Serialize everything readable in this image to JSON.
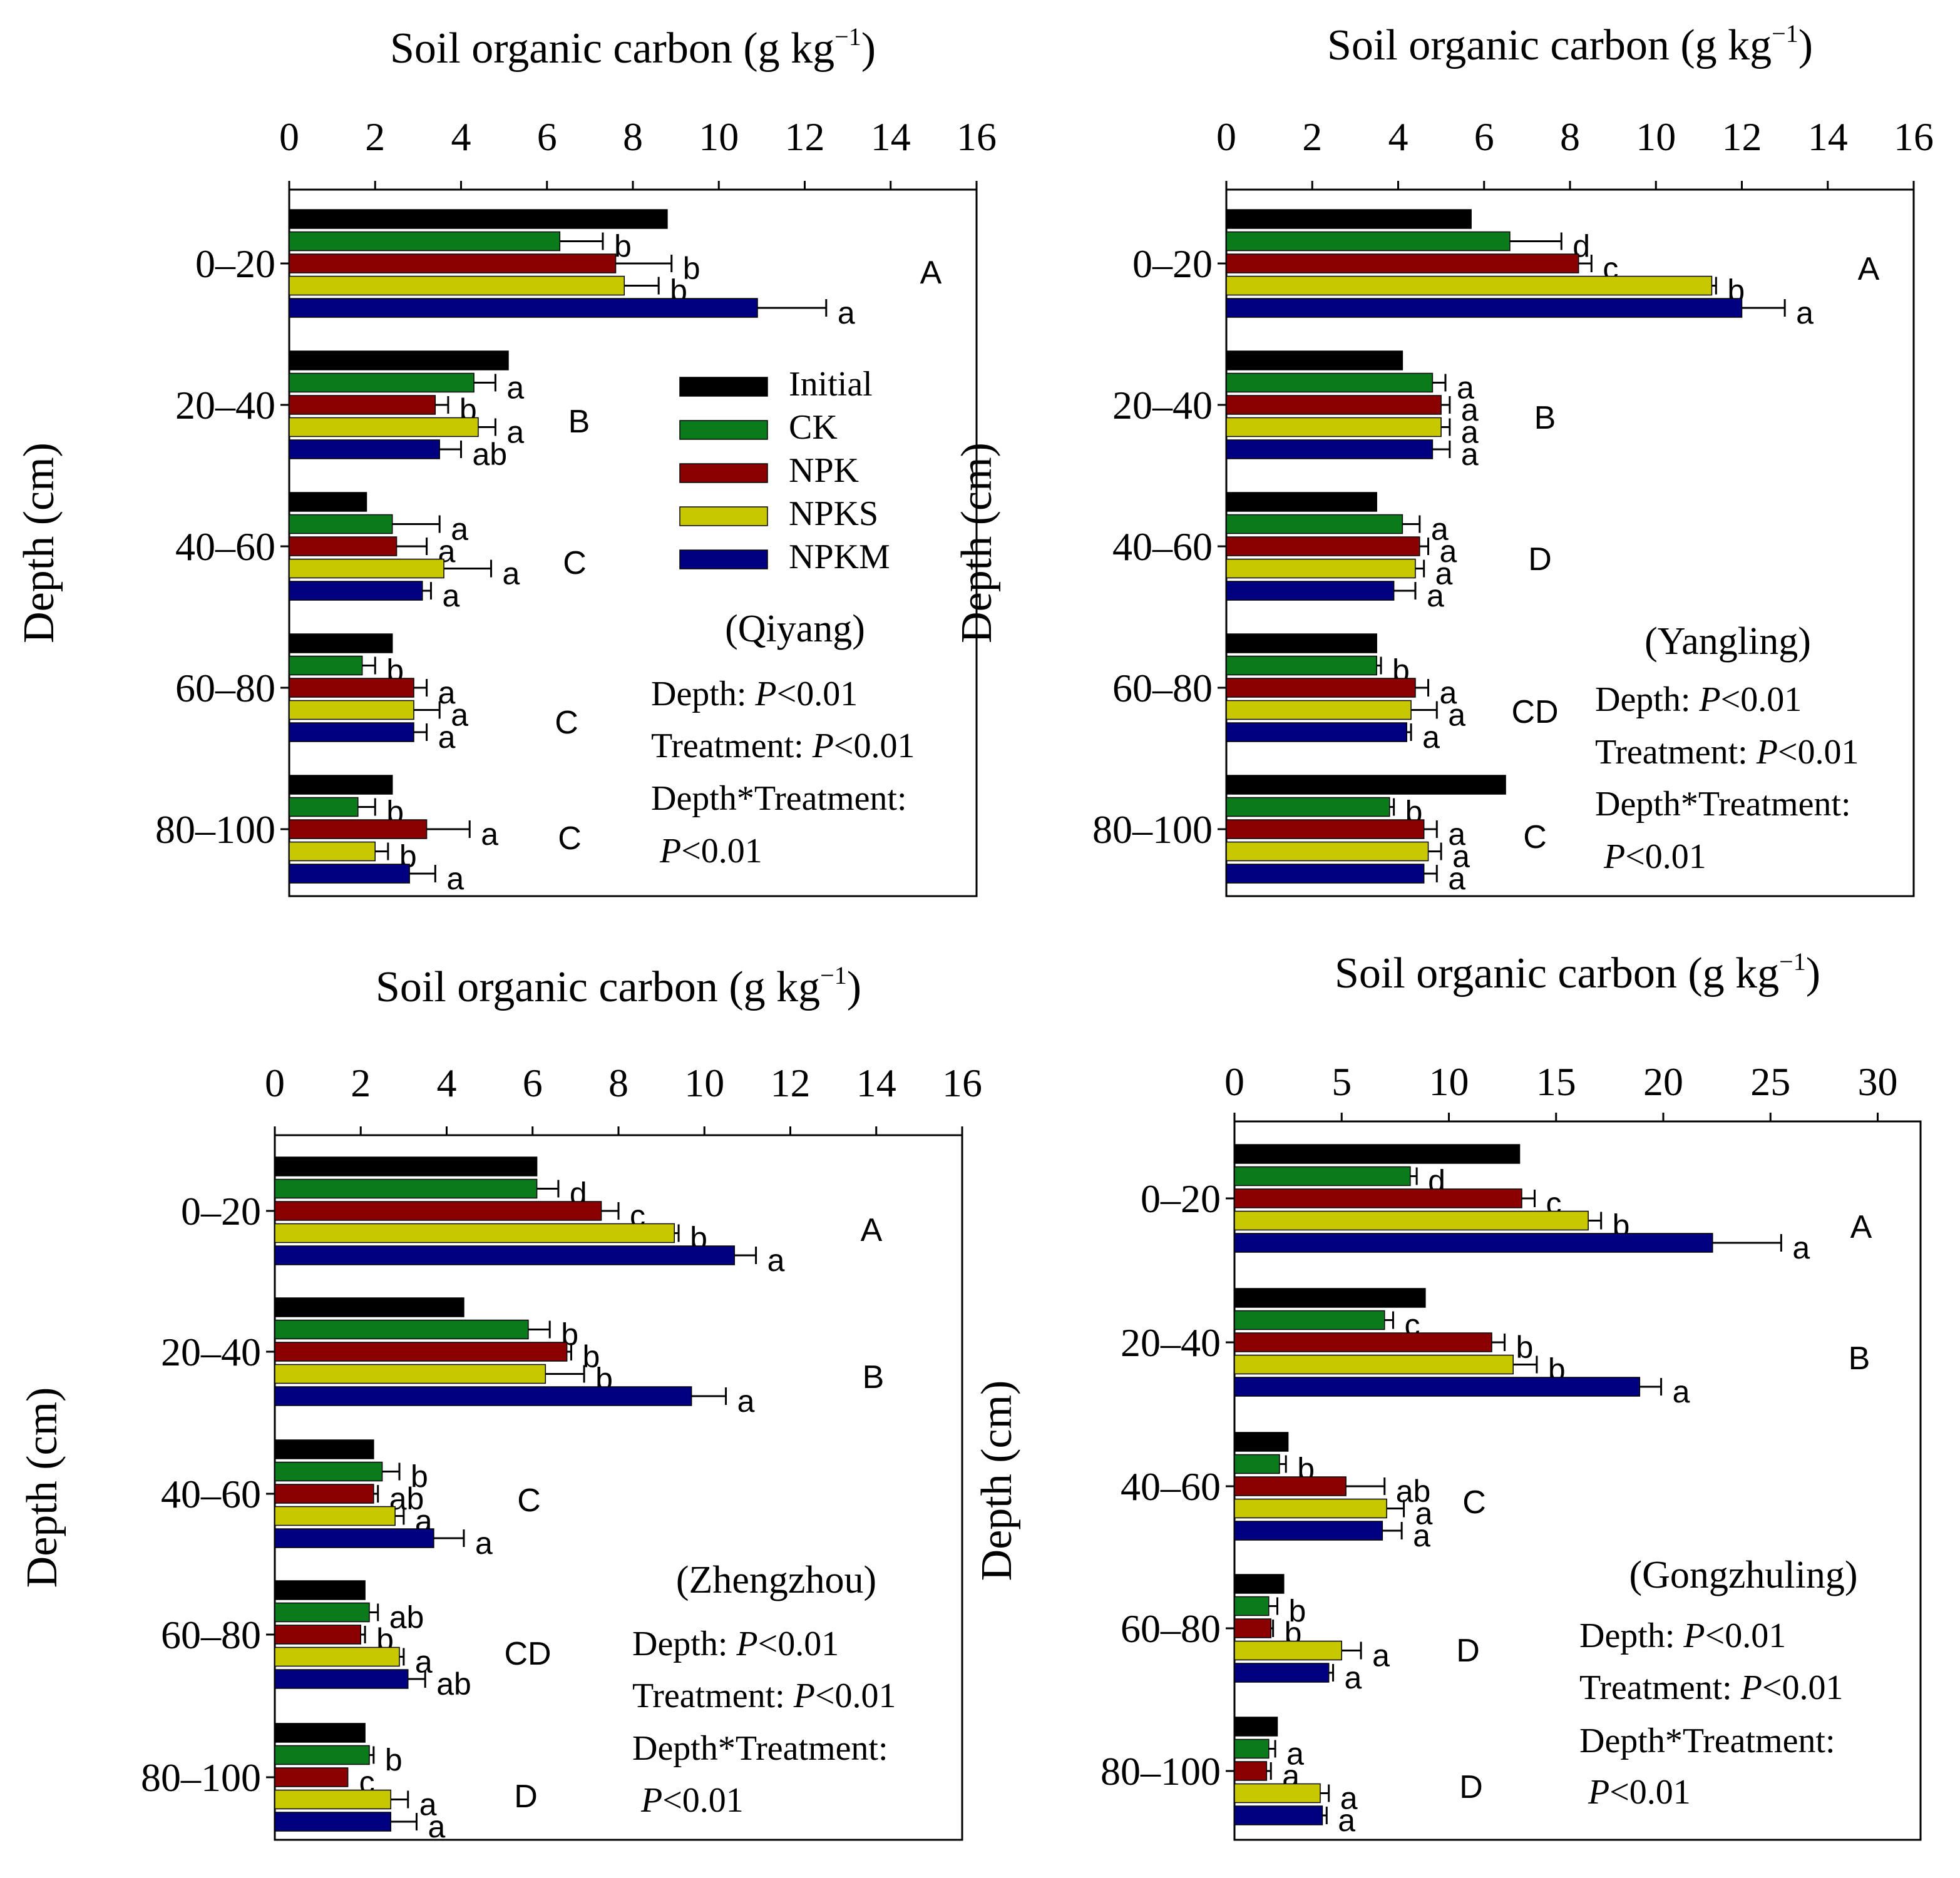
{
  "colors": {
    "Initial": "#000000",
    "CK": "#0b7a1a",
    "NPK": "#8b0000",
    "NPKS": "#c8c800",
    "NPKM": "#000080"
  },
  "legend": [
    "Initial",
    "CK",
    "NPK",
    "NPKS",
    "NPKM"
  ],
  "chart_data": [
    {
      "type": "bar",
      "orientation": "horizontal",
      "site": "(Qiyang)",
      "title": "Soil organic carbon (g kg",
      "title_sup": "−1",
      "title_close": ")",
      "ylabel": "Depth (cm)",
      "xlim": [
        0,
        16
      ],
      "xticks": [
        "0",
        "2",
        "4",
        "6",
        "8",
        "10",
        "12",
        "14",
        "16"
      ],
      "categories": [
        "0–20",
        "20–40",
        "40–60",
        "60–80",
        "80–100"
      ],
      "depth_letters": [
        "A",
        "B",
        "C",
        "C",
        "C"
      ],
      "series": [
        {
          "name": "Initial",
          "values": [
            8.8,
            5.1,
            1.8,
            2.4,
            2.4
          ],
          "errors": [
            0,
            0,
            0,
            0,
            0
          ],
          "letters": [
            "",
            "",
            "",
            "",
            ""
          ]
        },
        {
          "name": "CK",
          "values": [
            6.3,
            4.3,
            2.4,
            1.7,
            1.6
          ],
          "errors": [
            1.0,
            0.5,
            1.1,
            0.3,
            0.4
          ],
          "letters": [
            "b",
            "a",
            "a",
            "b",
            "b"
          ]
        },
        {
          "name": "NPK",
          "values": [
            7.6,
            3.4,
            2.5,
            2.9,
            3.2
          ],
          "errors": [
            1.3,
            0.3,
            0.7,
            0.3,
            1.0
          ],
          "letters": [
            "b",
            "b",
            "a",
            "a",
            "a"
          ]
        },
        {
          "name": "NPKS",
          "values": [
            7.8,
            4.4,
            3.6,
            2.9,
            2.0
          ],
          "errors": [
            0.8,
            0.4,
            1.1,
            0.6,
            0.3
          ],
          "letters": [
            "b",
            "a",
            "a",
            "a",
            "b"
          ]
        },
        {
          "name": "NPKM",
          "values": [
            10.9,
            3.5,
            3.1,
            2.9,
            2.8
          ],
          "errors": [
            1.6,
            0.5,
            0.2,
            0.3,
            0.6
          ],
          "letters": [
            "a",
            "ab",
            "a",
            "a",
            "a"
          ]
        }
      ],
      "stats": {
        "depth": "Depth: ",
        "treatment": "Treatment: ",
        "interaction": "Depth*Treatment:",
        "p": "P",
        "pval": "<0.01"
      }
    },
    {
      "type": "bar",
      "orientation": "horizontal",
      "site": "(Yangling)",
      "title": "Soil organic carbon (g kg",
      "title_sup": "−1",
      "title_close": ")",
      "ylabel": "Depth (cm)",
      "xlim": [
        0,
        16
      ],
      "xticks": [
        "0",
        "2",
        "4",
        "6",
        "8",
        "10",
        "12",
        "14",
        "16"
      ],
      "categories": [
        "0–20",
        "20–40",
        "40–60",
        "60–80",
        "80–100"
      ],
      "depth_letters": [
        "A",
        "B",
        "D",
        "CD",
        "C"
      ],
      "series": [
        {
          "name": "Initial",
          "values": [
            5.7,
            4.1,
            3.5,
            3.5,
            6.5
          ],
          "errors": [
            0,
            0,
            0,
            0,
            0
          ],
          "letters": [
            "",
            "",
            "",
            "",
            ""
          ]
        },
        {
          "name": "CK",
          "values": [
            6.6,
            4.8,
            4.1,
            3.5,
            3.8
          ],
          "errors": [
            1.2,
            0.3,
            0.4,
            0.1,
            0.1
          ],
          "letters": [
            "d",
            "a",
            "a",
            "b",
            "b"
          ]
        },
        {
          "name": "NPK",
          "values": [
            8.2,
            5.0,
            4.5,
            4.4,
            4.6
          ],
          "errors": [
            0.3,
            0.2,
            0.2,
            0.3,
            0.3
          ],
          "letters": [
            "c",
            "a",
            "a",
            "a",
            "a"
          ]
        },
        {
          "name": "NPKS",
          "values": [
            11.3,
            5.0,
            4.4,
            4.3,
            4.7
          ],
          "errors": [
            0.1,
            0.2,
            0.2,
            0.6,
            0.3
          ],
          "letters": [
            "b",
            "a",
            "a",
            "a",
            "a"
          ]
        },
        {
          "name": "NPKM",
          "values": [
            12.0,
            4.8,
            3.9,
            4.2,
            4.6
          ],
          "errors": [
            1.0,
            0.4,
            0.5,
            0.1,
            0.3
          ],
          "letters": [
            "a",
            "a",
            "a",
            "a",
            "a"
          ]
        }
      ],
      "stats": {
        "depth": "Depth: ",
        "treatment": "Treatment: ",
        "interaction": "Depth*Treatment:",
        "p": "P",
        "pval": "<0.01"
      }
    },
    {
      "type": "bar",
      "orientation": "horizontal",
      "site": "(Zhengzhou)",
      "title": "Soil organic carbon (g kg",
      "title_sup": "−1",
      "title_close": ")",
      "ylabel": "Depth (cm)",
      "xlim": [
        0,
        16
      ],
      "xticks": [
        "0",
        "2",
        "4",
        "6",
        "8",
        "10",
        "12",
        "14",
        "16"
      ],
      "categories": [
        "0–20",
        "20–40",
        "40–60",
        "60–80",
        "80–100"
      ],
      "depth_letters": [
        "A",
        "B",
        "C",
        "CD",
        "D"
      ],
      "series": [
        {
          "name": "Initial",
          "values": [
            6.1,
            4.4,
            2.3,
            2.1,
            2.1
          ],
          "errors": [
            0,
            0,
            0,
            0,
            0
          ],
          "letters": [
            "",
            "",
            "",
            "",
            ""
          ]
        },
        {
          "name": "CK",
          "values": [
            6.1,
            5.9,
            2.5,
            2.2,
            2.2
          ],
          "errors": [
            0.5,
            0.5,
            0.4,
            0.2,
            0.1
          ],
          "letters": [
            "d",
            "b",
            "b",
            "ab",
            "b"
          ]
        },
        {
          "name": "NPK",
          "values": [
            7.6,
            6.8,
            2.3,
            2.0,
            1.7
          ],
          "errors": [
            0.4,
            0.1,
            0.1,
            0.1,
            0.0
          ],
          "letters": [
            "c",
            "b",
            "ab",
            "b",
            "c"
          ]
        },
        {
          "name": "NPKS",
          "values": [
            9.3,
            6.3,
            2.8,
            2.9,
            2.7
          ],
          "errors": [
            0.1,
            0.9,
            0.2,
            0.1,
            0.4
          ],
          "letters": [
            "b",
            "b",
            "a",
            "a",
            "a"
          ]
        },
        {
          "name": "NPKM",
          "values": [
            10.7,
            9.7,
            3.7,
            3.1,
            2.7
          ],
          "errors": [
            0.5,
            0.8,
            0.7,
            0.4,
            0.6
          ],
          "letters": [
            "a",
            "a",
            "a",
            "ab",
            "a"
          ]
        }
      ],
      "stats": {
        "depth": "Depth: ",
        "treatment": "Treatment: ",
        "interaction": "Depth*Treatment:",
        "p": "P",
        "pval": "<0.01"
      }
    },
    {
      "type": "bar",
      "orientation": "horizontal",
      "site": "(Gongzhuling)",
      "title": "Soil organic carbon (g kg",
      "title_sup": "−1",
      "title_close": ")",
      "ylabel": "Depth (cm)",
      "xlim": [
        0,
        32
      ],
      "xticks": [
        "0",
        "5",
        "10",
        "15",
        "20",
        "25",
        "30"
      ],
      "xtick_values": [
        0,
        5,
        10,
        15,
        20,
        25,
        30
      ],
      "categories": [
        "0–20",
        "20–40",
        "40–60",
        "60–80",
        "80–100"
      ],
      "depth_letters": [
        "A",
        "B",
        "C",
        "D",
        "D"
      ],
      "series": [
        {
          "name": "Initial",
          "values": [
            13.3,
            8.9,
            2.5,
            2.3,
            2.0
          ],
          "errors": [
            0,
            0,
            0,
            0,
            0
          ],
          "letters": [
            "",
            "",
            "",
            "",
            ""
          ]
        },
        {
          "name": "CK",
          "values": [
            8.2,
            7.0,
            2.1,
            1.6,
            1.6
          ],
          "errors": [
            0.3,
            0.4,
            0.3,
            0.4,
            0.3
          ],
          "letters": [
            "d",
            "c",
            "b",
            "b",
            "a"
          ]
        },
        {
          "name": "NPK",
          "values": [
            13.4,
            12.0,
            5.2,
            1.7,
            1.5
          ],
          "errors": [
            0.6,
            0.6,
            1.8,
            0.1,
            0.2
          ],
          "letters": [
            "c",
            "b",
            "ab",
            "b",
            "a"
          ]
        },
        {
          "name": "NPKS",
          "values": [
            16.5,
            13.0,
            7.1,
            5.0,
            4.0
          ],
          "errors": [
            0.6,
            1.1,
            0.8,
            0.9,
            0.4
          ],
          "letters": [
            "b",
            "b",
            "a",
            "a",
            "a"
          ]
        },
        {
          "name": "NPKM",
          "values": [
            22.3,
            18.9,
            6.9,
            4.4,
            4.1
          ],
          "errors": [
            3.2,
            1.0,
            0.9,
            0.2,
            0.2
          ],
          "letters": [
            "a",
            "a",
            "a",
            "a",
            "a"
          ]
        }
      ],
      "stats": {
        "depth": "Depth: ",
        "treatment": "Treatment: ",
        "interaction": "Depth*Treatment:",
        "p": "P",
        "pval": "<0.01"
      }
    }
  ]
}
